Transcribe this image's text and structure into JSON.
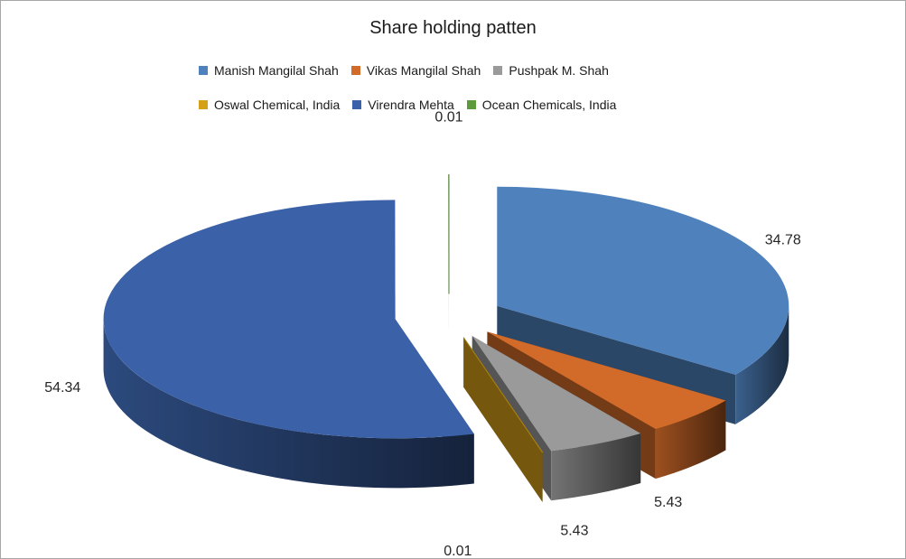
{
  "chart_data": {
    "type": "pie",
    "title": "Share holding patten",
    "legend_position": "top",
    "exploded": true,
    "three_d": true,
    "slices": [
      {
        "label": "Manish Mangilal Shah",
        "value": 34.78,
        "color": "#4f81bd"
      },
      {
        "label": "Vikas Mangilal Shah",
        "value": 5.43,
        "color": "#d26b29"
      },
      {
        "label": "Pushpak M. Shah",
        "value": 5.43,
        "color": "#9a9a9a"
      },
      {
        "label": "Oswal Chemical, India",
        "value": 0.01,
        "color": "#d4a017"
      },
      {
        "label": "Virendra Mehta",
        "value": 54.34,
        "color": "#3b62a8"
      },
      {
        "label": "Ocean Chemicals, India",
        "value": 0.01,
        "color": "#5b9b3b"
      }
    ],
    "data_labels": [
      "34.78",
      "5.43",
      "5.43",
      "0.01",
      "54.34",
      "0.01"
    ]
  }
}
